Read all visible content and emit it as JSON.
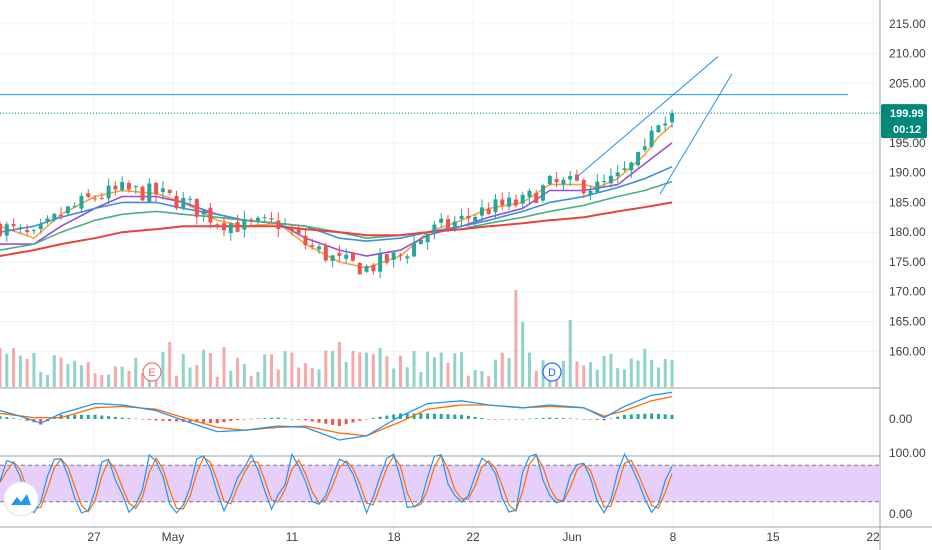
{
  "chart_data": {
    "type": "candlestick",
    "y_axis": {
      "ticks": [
        "215.00",
        "210.00",
        "205.00",
        "200.00",
        "195.00",
        "190.00",
        "185.00",
        "180.00",
        "175.00",
        "170.00",
        "165.00",
        "160.00"
      ],
      "range": [
        154,
        219
      ]
    },
    "x_axis": {
      "ticks": [
        "27",
        "May",
        "11",
        "18",
        "22",
        "Jun",
        "8",
        "15",
        "22"
      ]
    },
    "last_price": {
      "value": "199.99",
      "countdown": "00:12",
      "color": "#00897b"
    },
    "events": [
      {
        "label": "E",
        "type": "earnings",
        "color": "#e57373"
      },
      {
        "label": "D",
        "type": "dividend",
        "color": "#2962ff"
      }
    ],
    "horizontal_line": {
      "value": 203.1,
      "color": "#2196f3"
    },
    "channel": {
      "upper": [
        [
          184.5,
          189.0
        ],
        [
          211.3,
          209.5
        ]
      ],
      "lower": [
        [
          184.6,
          186.4
        ],
        [
          211.3,
          206.6
        ]
      ],
      "color": "#2196f3"
    },
    "colors": {
      "up": "#26a69a",
      "down": "#ef5350",
      "ma_fast": "#f7a440",
      "ma_purple": "#9c4fd6",
      "ma_blue": "#3d8fdb",
      "ma_green": "#4caf82",
      "ma_red": "#e8423b"
    },
    "series": [
      {
        "name": "",
        "color": "#f7a440",
        "points": [
          [
            0,
            181
          ],
          [
            5,
            179
          ],
          [
            9,
            183
          ],
          [
            14,
            186
          ],
          [
            18,
            187
          ],
          [
            23,
            186.5
          ],
          [
            27,
            185
          ],
          [
            32,
            182
          ],
          [
            36,
            181
          ],
          [
            41,
            181.5
          ],
          [
            45,
            178
          ],
          [
            50,
            175
          ],
          [
            54,
            174
          ],
          [
            59,
            176
          ],
          [
            63,
            180
          ],
          [
            68,
            182
          ],
          [
            72,
            184
          ],
          [
            77,
            185
          ],
          [
            81,
            188
          ],
          [
            86,
            188
          ],
          [
            88,
            187.5
          ],
          [
            91,
            189
          ],
          [
            95,
            193
          ],
          [
            97,
            196
          ],
          [
            99,
            198
          ]
        ]
      },
      {
        "name": "",
        "color": "#9c4fd6",
        "points": [
          [
            0,
            178
          ],
          [
            5,
            178
          ],
          [
            9,
            181
          ],
          [
            14,
            184
          ],
          [
            18,
            186
          ],
          [
            23,
            186
          ],
          [
            27,
            185
          ],
          [
            32,
            183
          ],
          [
            36,
            182
          ],
          [
            41,
            181.5
          ],
          [
            45,
            179
          ],
          [
            50,
            177
          ],
          [
            54,
            176
          ],
          [
            59,
            177
          ],
          [
            63,
            179.5
          ],
          [
            68,
            181
          ],
          [
            72,
            182.5
          ],
          [
            77,
            184
          ],
          [
            81,
            187
          ],
          [
            86,
            187
          ],
          [
            91,
            188
          ],
          [
            95,
            191.5
          ],
          [
            99,
            195
          ]
        ]
      },
      {
        "name": "",
        "color": "#3d8fdb",
        "points": [
          [
            0,
            180
          ],
          [
            5,
            181
          ],
          [
            9,
            182.5
          ],
          [
            14,
            184
          ],
          [
            18,
            185
          ],
          [
            23,
            185
          ],
          [
            27,
            184
          ],
          [
            32,
            183
          ],
          [
            36,
            182
          ],
          [
            41,
            181.5
          ],
          [
            45,
            181
          ],
          [
            50,
            179
          ],
          [
            54,
            178.5
          ],
          [
            59,
            179
          ],
          [
            63,
            180
          ],
          [
            68,
            181
          ],
          [
            72,
            182
          ],
          [
            77,
            183.5
          ],
          [
            81,
            185
          ],
          [
            86,
            186
          ],
          [
            91,
            187.5
          ],
          [
            95,
            189
          ],
          [
            99,
            191
          ]
        ]
      },
      {
        "name": "",
        "color": "#4caf82",
        "points": [
          [
            0,
            177
          ],
          [
            5,
            178
          ],
          [
            9,
            180
          ],
          [
            14,
            182
          ],
          [
            18,
            183
          ],
          [
            23,
            183.5
          ],
          [
            27,
            183
          ],
          [
            32,
            182.5
          ],
          [
            36,
            182
          ],
          [
            41,
            181.5
          ],
          [
            45,
            181
          ],
          [
            50,
            180
          ],
          [
            54,
            179
          ],
          [
            59,
            179.5
          ],
          [
            63,
            180
          ],
          [
            68,
            180.5
          ],
          [
            72,
            181.5
          ],
          [
            77,
            182.5
          ],
          [
            81,
            183.5
          ],
          [
            86,
            184.5
          ],
          [
            91,
            186
          ],
          [
            95,
            187
          ],
          [
            99,
            188.5
          ]
        ]
      },
      {
        "name": "",
        "color": "#e8423b",
        "points": [
          [
            0,
            176
          ],
          [
            5,
            177
          ],
          [
            9,
            178
          ],
          [
            14,
            179
          ],
          [
            18,
            180
          ],
          [
            23,
            180.5
          ],
          [
            27,
            181
          ],
          [
            32,
            181
          ],
          [
            36,
            181
          ],
          [
            41,
            181
          ],
          [
            45,
            180.5
          ],
          [
            50,
            180
          ],
          [
            54,
            179.5
          ],
          [
            59,
            179.5
          ],
          [
            63,
            180
          ],
          [
            68,
            180.5
          ],
          [
            72,
            181
          ],
          [
            77,
            181.5
          ],
          [
            81,
            182
          ],
          [
            86,
            182.5
          ],
          [
            91,
            183.5
          ],
          [
            95,
            184.2
          ],
          [
            99,
            185
          ]
        ]
      }
    ],
    "macd": {
      "zero_label": "0.00",
      "macd_color": "#2196f3",
      "signal_color": "#ff6d00",
      "macd": [
        [
          0,
          0.3
        ],
        [
          3,
          0.1
        ],
        [
          6,
          -0.15
        ],
        [
          9,
          0.2
        ],
        [
          14,
          0.55
        ],
        [
          18,
          0.5
        ],
        [
          23,
          0.3
        ],
        [
          27,
          -0.05
        ],
        [
          32,
          -0.45
        ],
        [
          36,
          -0.4
        ],
        [
          41,
          -0.25
        ],
        [
          45,
          -0.3
        ],
        [
          50,
          -0.75
        ],
        [
          54,
          -0.6
        ],
        [
          59,
          0.1
        ],
        [
          63,
          0.55
        ],
        [
          68,
          0.65
        ],
        [
          72,
          0.5
        ],
        [
          77,
          0.4
        ],
        [
          81,
          0.5
        ],
        [
          86,
          0.4
        ],
        [
          89,
          0.05
        ],
        [
          92,
          0.45
        ],
        [
          96,
          0.85
        ],
        [
          99,
          0.95
        ]
      ],
      "signal": [
        [
          0,
          0.2
        ],
        [
          5,
          0.05
        ],
        [
          9,
          0.05
        ],
        [
          14,
          0.4
        ],
        [
          18,
          0.45
        ],
        [
          23,
          0.35
        ],
        [
          27,
          0.05
        ],
        [
          32,
          -0.3
        ],
        [
          36,
          -0.4
        ],
        [
          41,
          -0.3
        ],
        [
          45,
          -0.25
        ],
        [
          50,
          -0.5
        ],
        [
          54,
          -0.6
        ],
        [
          59,
          -0.1
        ],
        [
          63,
          0.35
        ],
        [
          68,
          0.5
        ],
        [
          72,
          0.5
        ],
        [
          77,
          0.4
        ],
        [
          81,
          0.45
        ],
        [
          86,
          0.4
        ],
        [
          89,
          0.1
        ],
        [
          92,
          0.3
        ],
        [
          96,
          0.65
        ],
        [
          99,
          0.8
        ]
      ]
    },
    "stochastic": {
      "labels": [
        "100.00",
        "0.00"
      ],
      "band": [
        20,
        80
      ],
      "band_color": "#e6cffa",
      "k_color": "#2196f3",
      "d_color": "#ff6d00"
    }
  }
}
